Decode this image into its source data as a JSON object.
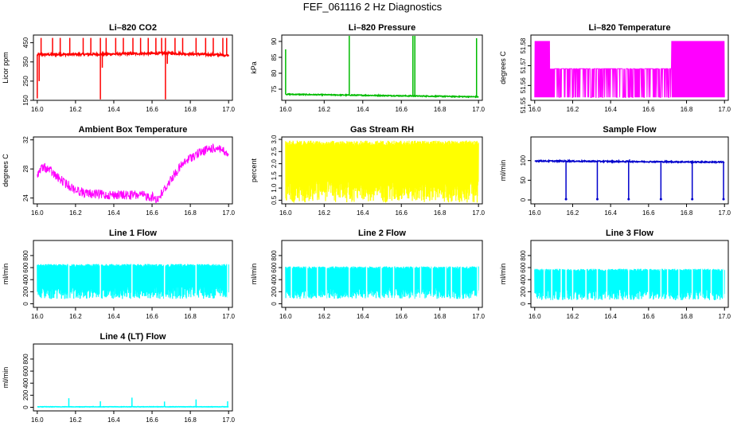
{
  "page": {
    "title": "FEF_061116  2 Hz Diagnostics"
  },
  "chart_data": [
    {
      "id": "co2",
      "type": "line",
      "title": "Li–820 CO2",
      "ylabel": "Licor ppm",
      "x_ticks": [
        "16.0",
        "16.2",
        "16.4",
        "16.6",
        "16.8",
        "17.0"
      ],
      "y_ticks": [
        {
          "v": 150,
          "t": "150"
        },
        {
          "v": 250,
          "t": "250"
        },
        {
          "v": 350,
          "t": "350"
        },
        {
          "v": 450,
          "t": "450"
        }
      ],
      "ylim": [
        150,
        490
      ],
      "color": "#ff0000",
      "grid": false,
      "series": [
        {
          "baseline": 395,
          "noise": 6,
          "drift": [
            [
              16.0,
              388
            ],
            [
              16.3,
              390
            ],
            [
              16.5,
              393
            ],
            [
              16.7,
              395
            ],
            [
              17.0,
              385
            ]
          ],
          "spikes": [
            [
              16.02,
              475
            ],
            [
              16.08,
              475
            ],
            [
              16.12,
              475
            ],
            [
              16.17,
              475
            ],
            [
              16.24,
              475
            ],
            [
              16.28,
              475
            ],
            [
              16.33,
              475
            ],
            [
              16.36,
              475
            ],
            [
              16.41,
              475
            ],
            [
              16.45,
              475
            ],
            [
              16.5,
              475
            ],
            [
              16.54,
              475
            ],
            [
              16.58,
              475
            ],
            [
              16.62,
              475
            ],
            [
              16.65,
              475
            ],
            [
              16.67,
              475
            ],
            [
              16.72,
              475
            ],
            [
              16.76,
              475
            ],
            [
              16.83,
              475
            ],
            [
              16.88,
              475
            ],
            [
              16.92,
              475
            ],
            [
              16.97,
              475
            ],
            [
              16.99,
              475
            ]
          ],
          "drops": [
            [
              16.0,
              160
            ],
            [
              16.33,
              155
            ],
            [
              16.67,
              155
            ],
            [
              16.34,
              320
            ],
            [
              16.68,
              340
            ],
            [
              16.01,
              250
            ]
          ]
        }
      ]
    },
    {
      "id": "pressure",
      "type": "line",
      "title": "Li–820 Pressure",
      "ylabel": "kPa",
      "x_ticks": [
        "16.0",
        "16.2",
        "16.4",
        "16.6",
        "16.8",
        "17.0"
      ],
      "y_ticks": [
        {
          "v": 75,
          "t": "75"
        },
        {
          "v": 80,
          "t": "80"
        },
        {
          "v": 85,
          "t": "85"
        },
        {
          "v": 90,
          "t": "90"
        }
      ],
      "ylim": [
        71.5,
        92
      ],
      "color": "#00bb00",
      "grid": false,
      "series": [
        {
          "baseline": 73.2,
          "noise": 0.15,
          "drift": [
            [
              16.0,
              73.4
            ],
            [
              17.0,
              72.6
            ]
          ],
          "spikes": [
            [
              16.0,
              87.5
            ],
            [
              16.33,
              92
            ],
            [
              16.66,
              92
            ],
            [
              16.67,
              92
            ],
            [
              16.99,
              91
            ]
          ],
          "drops": []
        }
      ]
    },
    {
      "id": "licor_temp",
      "type": "line",
      "title": "Li–820 Temperature",
      "ylabel": "degrees C",
      "x_ticks": [
        "16.0",
        "16.2",
        "16.4",
        "16.6",
        "16.8",
        "17.0"
      ],
      "y_ticks": [
        {
          "v": 51.55,
          "t": "51.55"
        },
        {
          "v": 51.56,
          "t": "51.56"
        },
        {
          "v": 51.57,
          "t": "51.57"
        },
        {
          "v": 51.58,
          "t": "51.58"
        }
      ],
      "ylim": [
        51.5525,
        51.5855
      ],
      "color": "#ff00ff",
      "grid": false,
      "series": [
        {
          "levels": [
            51.554,
            51.5685,
            51.5825
          ],
          "segments": [
            [
              16.0,
              16.08,
              "high"
            ],
            [
              16.08,
              16.72,
              "mid"
            ],
            [
              16.72,
              17.0,
              "high"
            ]
          ]
        }
      ]
    },
    {
      "id": "box_temp",
      "type": "line",
      "title": "Ambient Box Temperature",
      "ylabel": "degrees C",
      "x_ticks": [
        "16.0",
        "16.2",
        "16.4",
        "16.6",
        "16.8",
        "17.0"
      ],
      "y_ticks": [
        {
          "v": 24,
          "t": "24"
        },
        {
          "v": 28,
          "t": "28"
        },
        {
          "v": 32,
          "t": "32"
        }
      ],
      "ylim": [
        23.2,
        32.4
      ],
      "color": "#ff00ff",
      "grid": false,
      "series": [
        {
          "curve": [
            [
              16.0,
              28.0
            ],
            [
              16.03,
              28.9
            ],
            [
              16.06,
              28.6
            ],
            [
              16.1,
              27.6
            ],
            [
              16.15,
              26.6
            ],
            [
              16.2,
              25.8
            ],
            [
              16.25,
              25.3
            ],
            [
              16.3,
              25.2
            ],
            [
              16.35,
              25.1
            ],
            [
              16.4,
              25.1
            ],
            [
              16.45,
              25.05
            ],
            [
              16.5,
              25.05
            ],
            [
              16.55,
              25.0
            ],
            [
              16.6,
              24.8
            ],
            [
              16.63,
              24.5
            ],
            [
              16.66,
              25.6
            ],
            [
              16.7,
              27.3
            ],
            [
              16.75,
              29.0
            ],
            [
              16.8,
              30.2
            ],
            [
              16.85,
              30.9
            ],
            [
              16.9,
              31.4
            ],
            [
              16.95,
              31.6
            ],
            [
              16.98,
              30.9
            ],
            [
              17.0,
              30.2
            ]
          ],
          "noise_down": 1.3
        }
      ]
    },
    {
      "id": "rh",
      "type": "line",
      "title": "Gas Stream RH",
      "ylabel": "percent",
      "x_ticks": [
        "16.0",
        "16.2",
        "16.4",
        "16.6",
        "16.8",
        "17.0"
      ],
      "y_ticks": [
        {
          "v": 0.5,
          "t": "0.5"
        },
        {
          "v": 1.0,
          "t": "1.0"
        },
        {
          "v": 1.5,
          "t": "1.5"
        },
        {
          "v": 2.0,
          "t": "2.0"
        },
        {
          "v": 2.5,
          "t": "2.5"
        },
        {
          "v": 3.0,
          "t": "3.0"
        }
      ],
      "ylim": [
        0.35,
        3.1
      ],
      "color": "#ffff00",
      "grid": false,
      "series": [
        {
          "band": [
            0.4,
            2.95
          ]
        }
      ]
    },
    {
      "id": "sample_flow",
      "type": "line",
      "title": "Sample Flow",
      "ylabel": "ml/min",
      "x_ticks": [
        "16.0",
        "16.2",
        "16.4",
        "16.6",
        "16.8",
        "17.0"
      ],
      "y_ticks": [
        {
          "v": 0,
          "t": "0"
        },
        {
          "v": 50,
          "t": "50"
        },
        {
          "v": 100,
          "t": "100"
        }
      ],
      "ylim": [
        -10,
        160
      ],
      "color": "#0000cc",
      "grid": false,
      "series": [
        {
          "baseline": 97,
          "noise": 1.5,
          "drift": [
            [
              16.0,
              99
            ],
            [
              17.0,
              96
            ]
          ],
          "spikes": [
            [
              16.18,
              102
            ],
            [
              16.5,
              103
            ],
            [
              16.83,
              100
            ]
          ],
          "drops": [
            [
              16.165,
              2
            ],
            [
              16.33,
              2
            ],
            [
              16.495,
              2
            ],
            [
              16.665,
              2
            ],
            [
              16.83,
              2
            ],
            [
              16.995,
              2
            ]
          ]
        }
      ]
    },
    {
      "id": "line1",
      "type": "line",
      "title": "Line 1 Flow",
      "ylabel": "ml/min",
      "x_ticks": [
        "16.0",
        "16.2",
        "16.4",
        "16.6",
        "16.8",
        "17.0"
      ],
      "y_ticks": [
        {
          "v": 0,
          "t": "0"
        },
        {
          "v": 200,
          "t": "200"
        },
        {
          "v": 400,
          "t": "400"
        },
        {
          "v": 600,
          "t": "600"
        },
        {
          "v": 800,
          "t": "800"
        }
      ],
      "ylim": [
        -60,
        1050
      ],
      "color": "#00ffff",
      "grid": false,
      "series": [
        {
          "band": [
            80,
            660
          ],
          "gaps": [
            16.165,
            16.33,
            16.495,
            16.665,
            16.83,
            16.995
          ]
        }
      ]
    },
    {
      "id": "line2",
      "type": "line",
      "title": "Line 2 Flow",
      "ylabel": "ml/min",
      "x_ticks": [
        "16.0",
        "16.2",
        "16.4",
        "16.6",
        "16.8",
        "17.0"
      ],
      "y_ticks": [
        {
          "v": 0,
          "t": "0"
        },
        {
          "v": 200,
          "t": "200"
        },
        {
          "v": 400,
          "t": "400"
        },
        {
          "v": 600,
          "t": "600"
        },
        {
          "v": 800,
          "t": "800"
        }
      ],
      "ylim": [
        -60,
        1050
      ],
      "color": "#00ffff",
      "grid": false,
      "series": [
        {
          "band": [
            80,
            620
          ],
          "gaps": [
            16.165,
            16.33,
            16.495,
            16.665,
            16.83,
            16.995,
            16.11,
            16.21,
            16.42,
            16.56,
            16.7,
            16.76,
            16.86,
            16.91,
            16.03
          ]
        }
      ]
    },
    {
      "id": "line3",
      "type": "line",
      "title": "Line 3 Flow",
      "ylabel": "ml/min",
      "x_ticks": [
        "16.0",
        "16.2",
        "16.4",
        "16.6",
        "16.8",
        "17.0"
      ],
      "y_ticks": [
        {
          "v": 0,
          "t": "0"
        },
        {
          "v": 200,
          "t": "200"
        },
        {
          "v": 400,
          "t": "400"
        },
        {
          "v": 600,
          "t": "600"
        },
        {
          "v": 800,
          "t": "800"
        }
      ],
      "ylim": [
        -60,
        1050
      ],
      "color": "#00ffff",
      "grid": false,
      "series": [
        {
          "band": [
            60,
            580
          ],
          "gaps": [
            16.165,
            16.33,
            16.495,
            16.665,
            16.83,
            16.995,
            16.05,
            16.09,
            16.14,
            16.2,
            16.27,
            16.38,
            16.6,
            16.7,
            16.76,
            16.88,
            16.93
          ]
        }
      ]
    },
    {
      "id": "line4",
      "type": "line",
      "title": "Line 4 (LT) Flow",
      "ylabel": "ml/min",
      "x_ticks": [
        "16.0",
        "16.2",
        "16.4",
        "16.6",
        "16.8",
        "17.0"
      ],
      "y_ticks": [
        {
          "v": 0,
          "t": "0"
        },
        {
          "v": 200,
          "t": "200"
        },
        {
          "v": 400,
          "t": "400"
        },
        {
          "v": 600,
          "t": "600"
        },
        {
          "v": 800,
          "t": "800"
        }
      ],
      "ylim": [
        -60,
        1050
      ],
      "color": "#00ffff",
      "grid": false,
      "series": [
        {
          "baseline": 8,
          "noise": 3,
          "drift": [
            [
              16.0,
              8
            ],
            [
              17.0,
              8
            ]
          ],
          "spikes": [
            [
              16.165,
              150
            ],
            [
              16.33,
              100
            ],
            [
              16.495,
              160
            ],
            [
              16.665,
              95
            ],
            [
              16.83,
              130
            ],
            [
              16.995,
              100
            ]
          ],
          "drops": []
        }
      ]
    }
  ]
}
